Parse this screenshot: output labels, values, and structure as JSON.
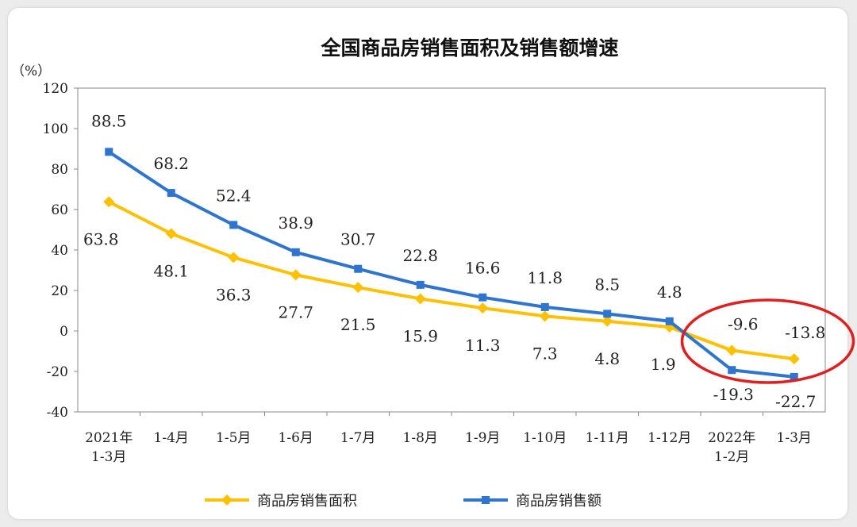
{
  "chart_data": {
    "type": "line",
    "title": "全国商品房销售面积及销售额增速",
    "ylabel": "（%）",
    "xlabel": "",
    "ylim": [
      -40,
      120
    ],
    "yticks": [
      120,
      100,
      80,
      60,
      40,
      20,
      0,
      -20,
      -40
    ],
    "categories": [
      "2021年\n1-3月",
      "1-4月",
      "1-5月",
      "1-6月",
      "1-7月",
      "1-8月",
      "1-9月",
      "1-10月",
      "1-11月",
      "1-12月",
      "2022年\n1-2月",
      "1-3月"
    ],
    "series": [
      {
        "name": "商品房销售面积",
        "color": "#FFC000",
        "marker": "diamond",
        "values": [
          63.8,
          48.1,
          36.3,
          27.7,
          21.5,
          15.9,
          11.3,
          7.3,
          4.8,
          1.9,
          -9.6,
          -13.8
        ]
      },
      {
        "name": "商品房销售额",
        "color": "#2E75D0",
        "marker": "square",
        "values": [
          88.5,
          68.2,
          52.4,
          38.9,
          30.7,
          22.8,
          16.6,
          11.8,
          8.5,
          4.8,
          -19.3,
          -22.7
        ]
      }
    ],
    "grid": false,
    "legend": "bottom",
    "annotation": {
      "shape": "ellipse",
      "color": "#E02020",
      "highlights": [
        "2022年\n1-2月",
        "1-3月"
      ]
    }
  }
}
